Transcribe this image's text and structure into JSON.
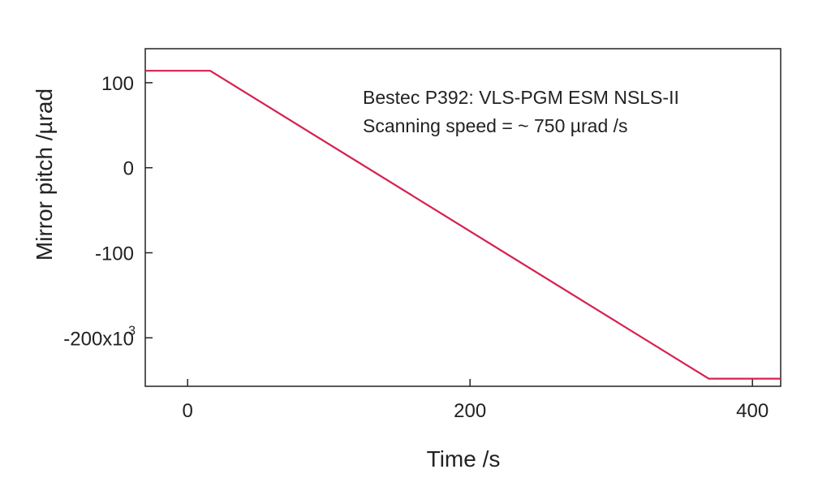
{
  "chart_data": {
    "type": "line",
    "xlabel": "Time /s",
    "ylabel": "Mirror pitch /µrad",
    "xlim": [
      -30,
      420
    ],
    "ylim": [
      -257000,
      140000
    ],
    "x_ticks": [
      0,
      200,
      400
    ],
    "x_tick_labels": [
      "0",
      "200",
      "400"
    ],
    "y_ticks": [
      100000,
      0,
      -100000,
      -200000
    ],
    "y_tick_labels": [
      "100",
      "0",
      "-100",
      "-200x10"
    ],
    "y_multiplier_exponent": "3",
    "annotations": [
      "Bestec P392: VLS-PGM ESM NSLS-II",
      "Scanning speed = ~ 750 µrad /s"
    ],
    "grid": false,
    "legend": "none",
    "series": [
      {
        "color": "#d6204f",
        "x": [
          -30,
          16,
          369,
          420
        ],
        "y": [
          114000,
          114000,
          -248000,
          -248000
        ]
      }
    ]
  }
}
